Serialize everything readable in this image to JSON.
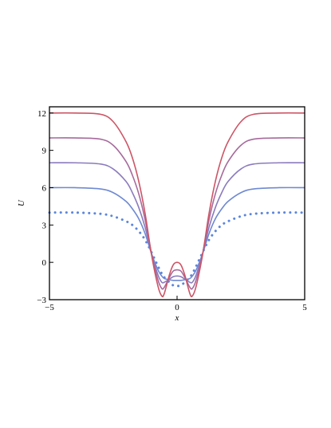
{
  "chart_data": {
    "type": "line",
    "xlabel": "x",
    "ylabel": "U",
    "xlim": [
      -5,
      5
    ],
    "ylim": [
      -3,
      12.5
    ],
    "xticks": [
      -5,
      0,
      5
    ],
    "xtick_labels": [
      "−5",
      "0",
      "5"
    ],
    "yticks": [
      -3,
      0,
      3,
      6,
      9,
      12
    ],
    "ytick_labels": [
      "−3",
      "0",
      "3",
      "6",
      "9",
      "12"
    ],
    "grid": false,
    "x": [
      -5,
      -4,
      -3,
      -2.5,
      -2,
      -1.75,
      -1.5,
      -1.25,
      -1,
      -0.75,
      -0.6,
      -0.5,
      -0.3,
      -0.15,
      0,
      0.15,
      0.3,
      0.5,
      0.6,
      0.75,
      1,
      1.25,
      1.5,
      1.75,
      2,
      2.5,
      3,
      4,
      5
    ],
    "series": [
      {
        "color": "#5b86dd",
        "style": "dotted",
        "values": [
          4,
          4,
          3.9,
          3.7,
          3.3,
          3,
          2.5,
          1.8,
          0.8,
          -0.3,
          -0.9,
          -1.2,
          -1.6,
          -1.85,
          -1.9,
          -1.85,
          -1.6,
          -1.2,
          -0.9,
          -0.3,
          0.8,
          1.8,
          2.5,
          3,
          3.3,
          3.7,
          3.9,
          4,
          4
        ]
      },
      {
        "color": "#6f89d2",
        "style": "solid",
        "values": [
          6,
          6,
          5.9,
          5.6,
          4.9,
          4.3,
          3.5,
          2.3,
          0.7,
          -0.6,
          -1.1,
          -1.3,
          -1.4,
          -1.45,
          -1.45,
          -1.45,
          -1.4,
          -1.3,
          -1.1,
          -0.6,
          0.7,
          2.3,
          3.5,
          4.3,
          4.9,
          5.6,
          5.9,
          6,
          6
        ]
      },
      {
        "color": "#8a7bbd",
        "style": "solid",
        "values": [
          8,
          8,
          7.9,
          7.5,
          6.5,
          5.6,
          4.4,
          2.8,
          0.7,
          -1.0,
          -1.6,
          -1.6,
          -1.35,
          -1.15,
          -1.1,
          -1.15,
          -1.35,
          -1.6,
          -1.6,
          -1.0,
          0.7,
          2.8,
          4.4,
          5.6,
          6.5,
          7.5,
          7.9,
          8,
          8
        ]
      },
      {
        "color": "#a66a9c",
        "style": "solid",
        "values": [
          10,
          10,
          9.9,
          9.4,
          8.1,
          7.0,
          5.5,
          3.4,
          0.7,
          -1.4,
          -2.1,
          -2.0,
          -1.2,
          -0.7,
          -0.6,
          -0.7,
          -1.2,
          -2.0,
          -2.1,
          -1.4,
          0.7,
          3.4,
          5.5,
          7.0,
          8.1,
          9.4,
          9.9,
          10,
          10
        ]
      },
      {
        "color": "#cd5566",
        "style": "solid",
        "values": [
          12,
          12,
          11.9,
          11.3,
          9.7,
          8.4,
          6.5,
          3.9,
          0.6,
          -1.9,
          -2.7,
          -2.5,
          -1.0,
          -0.2,
          0,
          -0.2,
          -1.0,
          -2.5,
          -2.7,
          -1.9,
          0.6,
          3.9,
          6.5,
          8.4,
          9.7,
          11.3,
          11.9,
          12,
          12
        ]
      }
    ]
  }
}
